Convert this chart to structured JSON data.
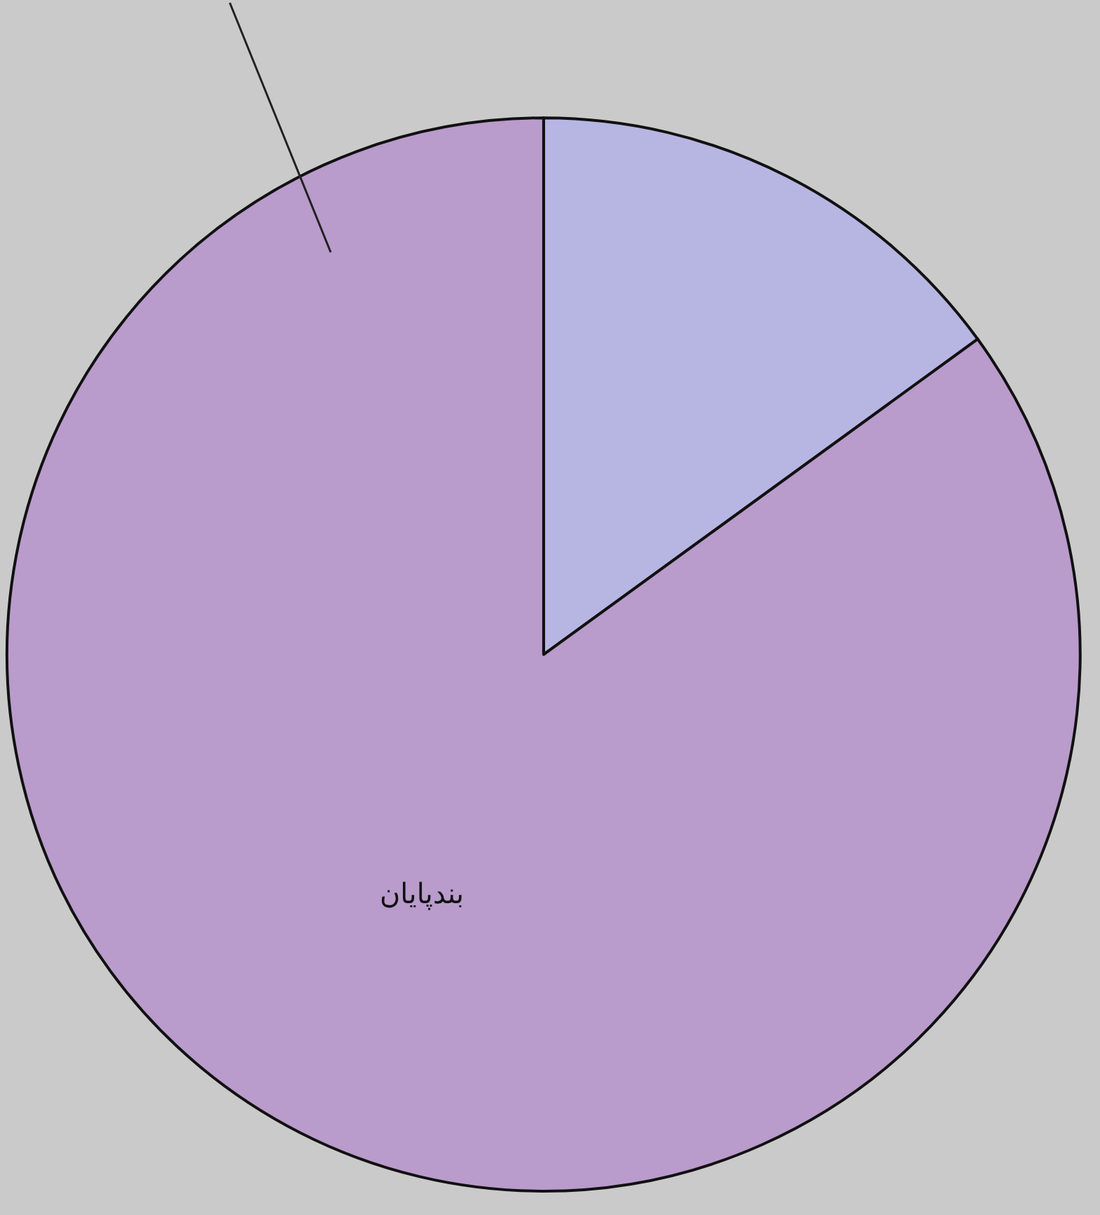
{
  "chart_data": {
    "type": "pie",
    "categories": [
      null,
      "بندپایان"
    ],
    "values": [
      15,
      85
    ],
    "colors": [
      "#b7b5e2",
      "#b99bcc"
    ],
    "legend": false
  }
}
